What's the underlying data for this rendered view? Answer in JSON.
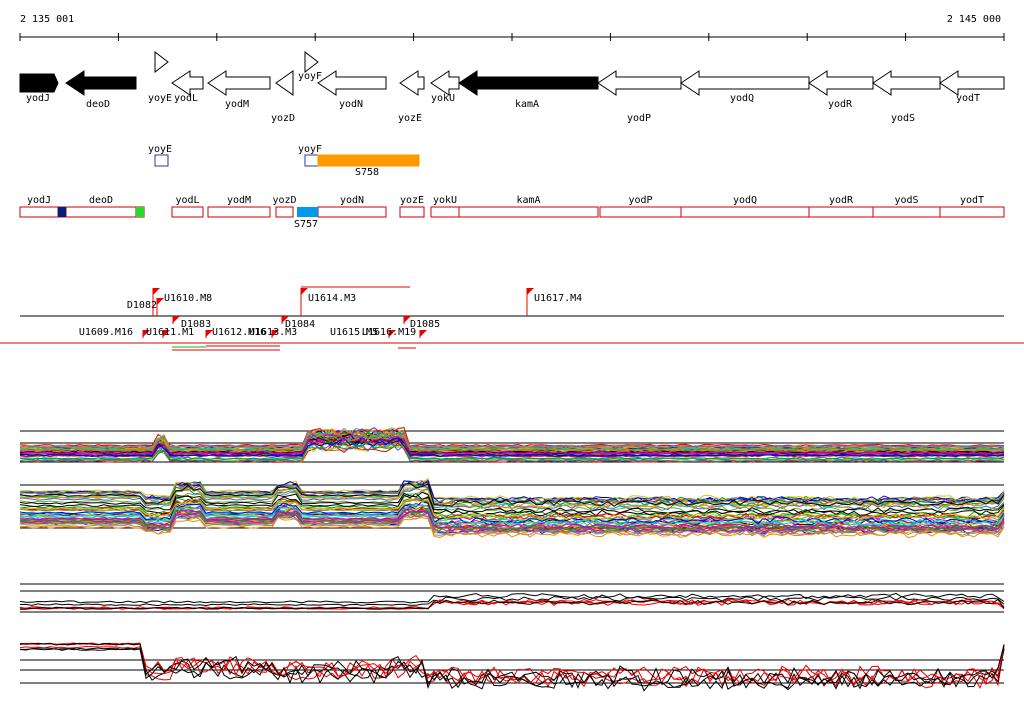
{
  "ruler": {
    "start": "2 135 001",
    "end": "2 145 000"
  },
  "genes": [
    "yodJ",
    "deoD",
    "yoyE",
    "yodL",
    "yodM",
    "yozD",
    "yoyF",
    "yodN",
    "yozE",
    "yokU",
    "kamA",
    "yodP",
    "yodQ",
    "yodR",
    "yodS",
    "yodT"
  ],
  "features": [
    "yoyE",
    "yoyF",
    "S758"
  ],
  "segments": [
    "yodJ",
    "deoD",
    "yodL",
    "yodM",
    "yozD",
    "yodN",
    "yozE",
    "yokU",
    "kamA",
    "yodP",
    "yodQ",
    "yodR",
    "yodS",
    "yodT",
    "S757"
  ],
  "markers": [
    "U1610.M8",
    "D1082",
    "U1614.M3",
    "U1617.M4",
    "U1609.M16",
    "U1611.M1",
    "D1083",
    "U1612.M16",
    "U1613.M3",
    "D1084",
    "U1615.M5",
    "U1616.M19",
    "D1085"
  ]
}
